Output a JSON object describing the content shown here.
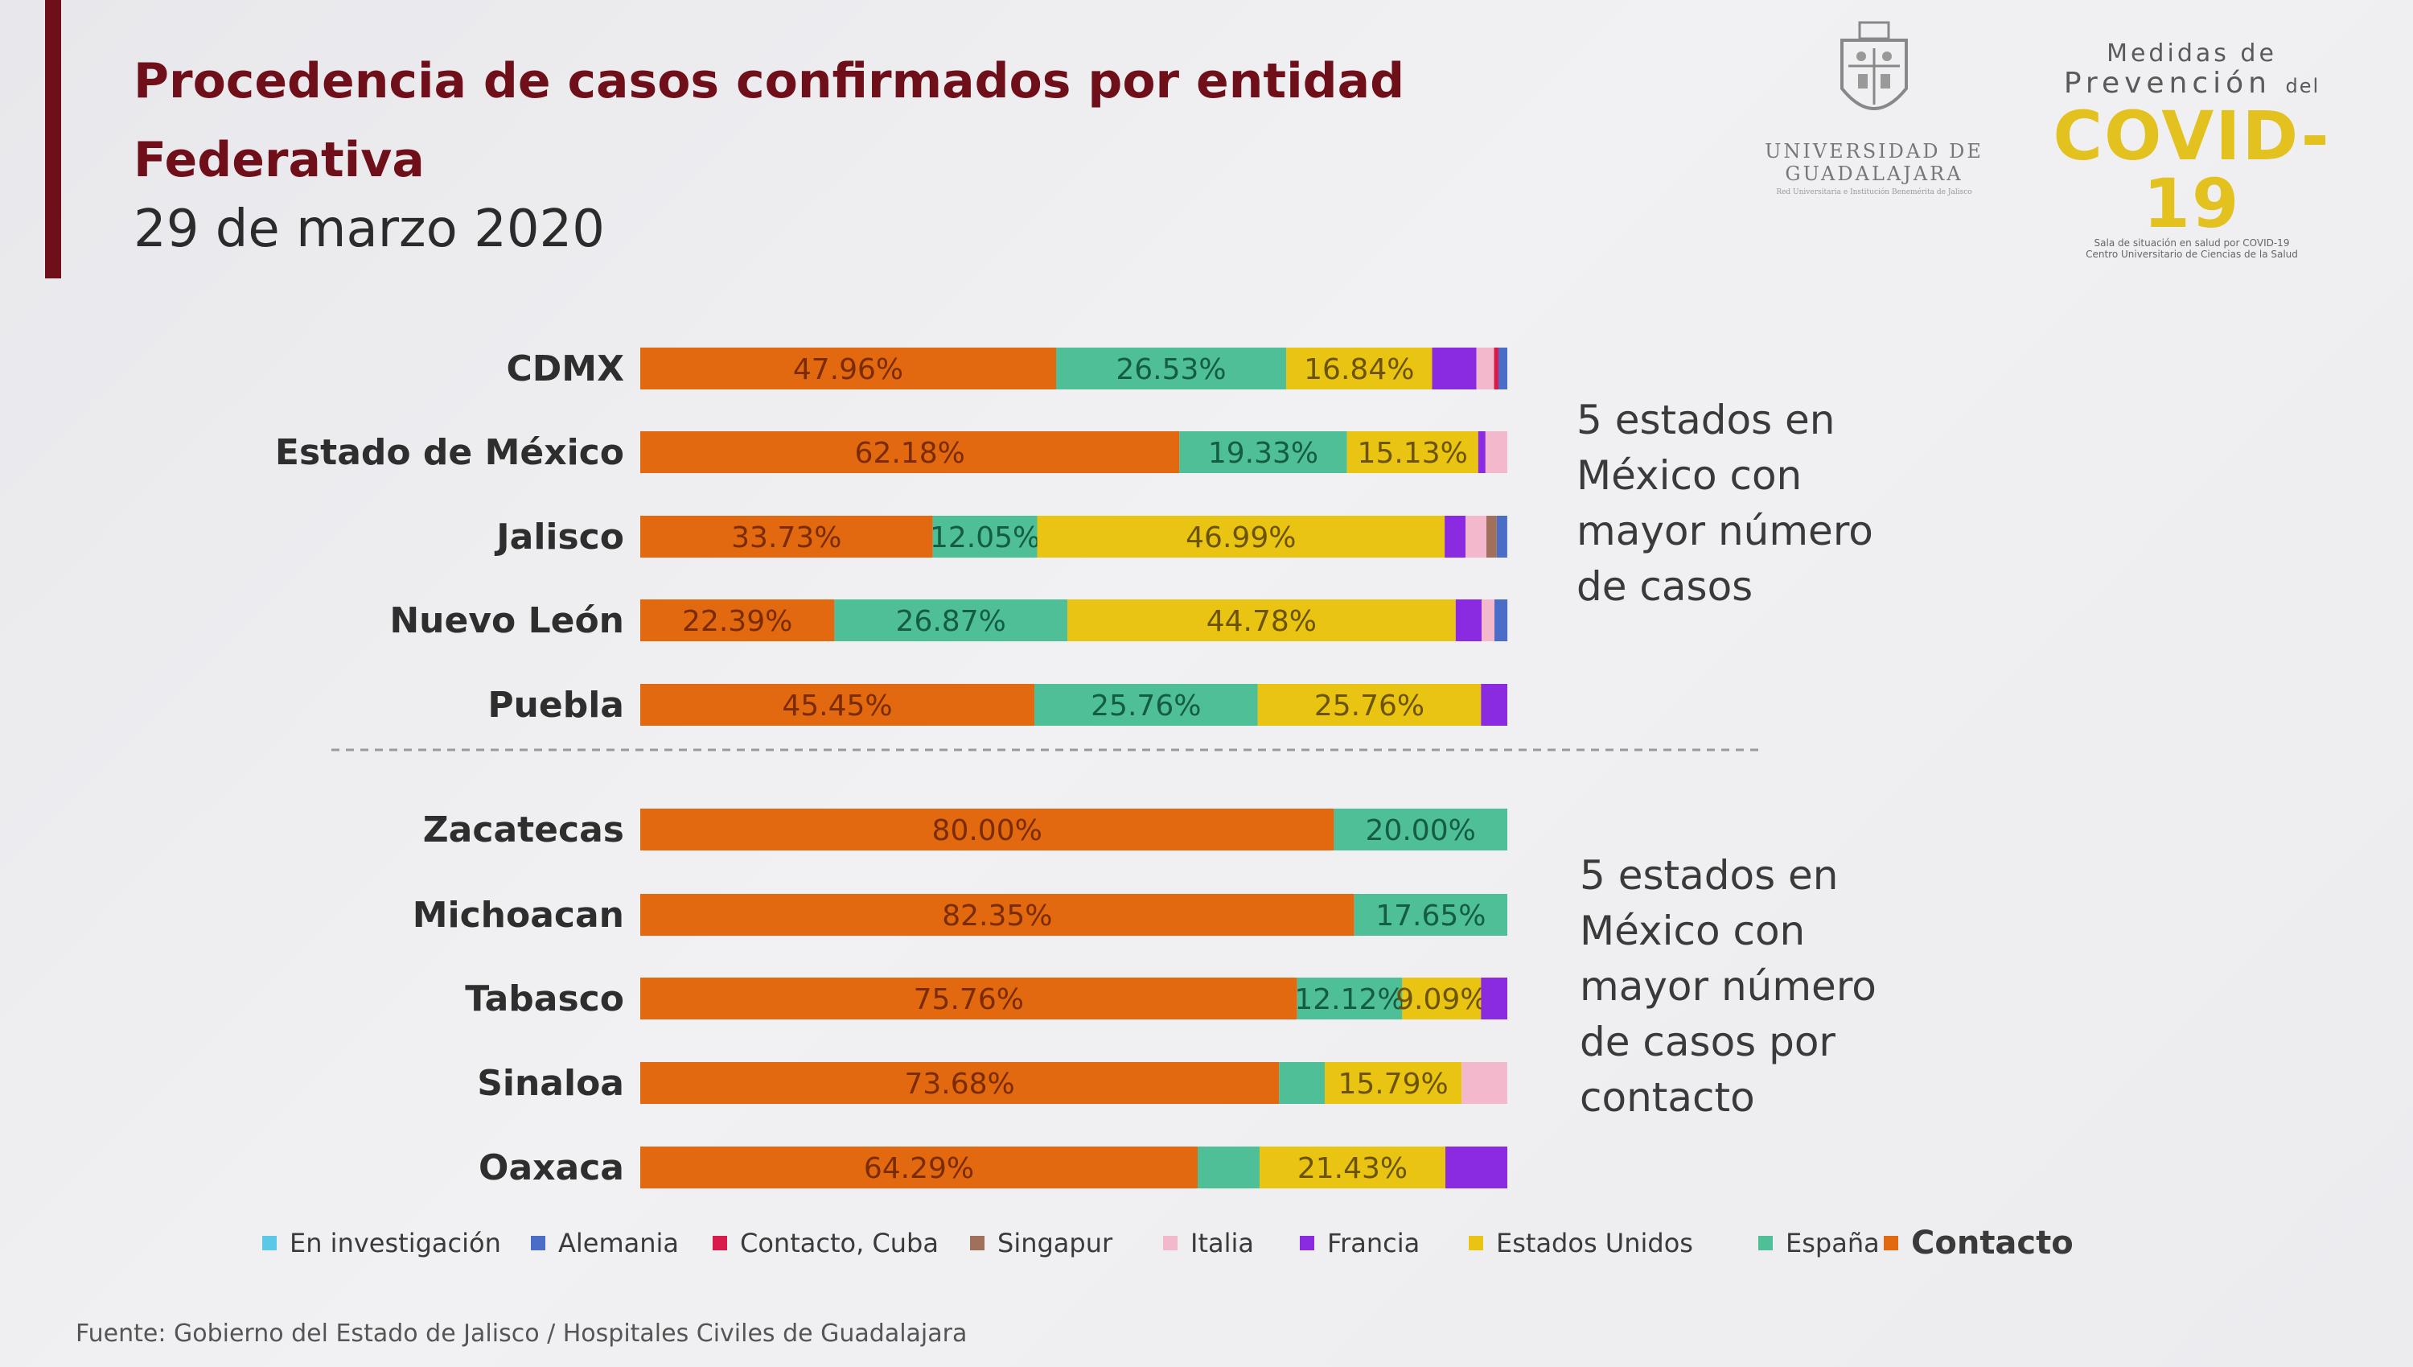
{
  "header": {
    "title_line1": "Procedencia de casos confirmados por entidad",
    "title_line2": "Federativa",
    "date": "29 de marzo 2020"
  },
  "logos": {
    "udg_line1": "UNIVERSIDAD DE",
    "udg_line2": "GUADALAJARA",
    "udg_small": "Red Universitaria e Institución Benemérita de Jalisco",
    "covid_line1": "Medidas de",
    "covid_line2": "Prevención",
    "covid_line2_small": "del",
    "covid_line3": "COVID-19",
    "covid_line4": "Sala de situación en salud por COVID-19",
    "covid_line5": "Centro Universitario de Ciencias de la Salud"
  },
  "captions": {
    "top": [
      "5 estados en",
      "México  con",
      "mayor número",
      "de casos"
    ],
    "bottom": [
      "5 estados en",
      "México  con",
      "mayor número",
      "de casos por",
      "contacto"
    ]
  },
  "source": "Fuente: Gobierno del Estado de Jalisco / Hospitales Civiles de Guadalajara",
  "colors": {
    "Contacto": "#e2690f",
    "España": "#4fbf98",
    "Estados Unidos": "#e9c412",
    "Francia": "#8a2be2",
    "Italia": "#f3b8cb",
    "Singapur": "#a0705a",
    "Contacto, Cuba": "#d81b4a",
    "Alemania": "#4a6ec8",
    "En investigación": "#5cc8e8"
  },
  "chart_data": {
    "type": "bar",
    "orientation": "horizontal",
    "stacked": true,
    "normalized": true,
    "categories": [
      "CDMX",
      "Estado de México",
      "Jalisco",
      "Nuevo León",
      "Puebla",
      "Zacatecas",
      "Michoacan",
      "Tabasco",
      "Sinaloa",
      "Oaxaca"
    ],
    "series": [
      {
        "name": "Contacto",
        "values": [
          47.96,
          62.18,
          33.73,
          22.39,
          45.45,
          80.0,
          82.35,
          75.76,
          73.68,
          64.29
        ],
        "labels": [
          "47.96%",
          "62.18%",
          "33.73%",
          "22.39%",
          "45.45%",
          "80.00%",
          "82.35%",
          "75.76%",
          "73.68%",
          "64.29%"
        ]
      },
      {
        "name": "España",
        "values": [
          26.53,
          19.33,
          12.05,
          26.87,
          25.76,
          20.0,
          17.65,
          12.12,
          5.26,
          7.14
        ],
        "labels": [
          "26.53%",
          "19.33%",
          "12.05%",
          "26.87%",
          "25.76%",
          "20.00%",
          "17.65%",
          "12.12%",
          "",
          ""
        ]
      },
      {
        "name": "Estados Unidos",
        "values": [
          16.84,
          15.13,
          46.99,
          44.78,
          25.76,
          0,
          0,
          9.09,
          15.79,
          21.43
        ],
        "labels": [
          "16.84%",
          "15.13%",
          "46.99%",
          "44.78%",
          "25.76%",
          "",
          "",
          "9.09%",
          "15.79%",
          "21.43%"
        ]
      },
      {
        "name": "Francia",
        "values": [
          5.1,
          0.84,
          2.41,
          2.99,
          3.03,
          0,
          0,
          3.03,
          0,
          7.14
        ],
        "labels": [
          "",
          "",
          "",
          "",
          "",
          "",
          "",
          "",
          "",
          ""
        ]
      },
      {
        "name": "Italia",
        "values": [
          2.04,
          2.52,
          2.41,
          1.49,
          0,
          0,
          0,
          0,
          5.26,
          0
        ],
        "labels": [
          "",
          "",
          "",
          "",
          "",
          "",
          "",
          "",
          "",
          ""
        ]
      },
      {
        "name": "Singapur",
        "values": [
          0,
          0,
          1.2,
          0,
          0,
          0,
          0,
          0,
          0,
          0
        ],
        "labels": [
          "",
          "",
          "",
          "",
          "",
          "",
          "",
          "",
          "",
          ""
        ]
      },
      {
        "name": "Contacto, Cuba",
        "values": [
          0.51,
          0,
          0,
          0,
          0,
          0,
          0,
          0,
          0,
          0
        ],
        "labels": [
          "",
          "",
          "",
          "",
          "",
          "",
          "",
          "",
          "",
          ""
        ]
      },
      {
        "name": "Alemania",
        "values": [
          1.02,
          0,
          1.2,
          1.49,
          0,
          0,
          0,
          0,
          0,
          0
        ],
        "labels": [
          "",
          "",
          "",
          "",
          "",
          "",
          "",
          "",
          "",
          ""
        ]
      },
      {
        "name": "En investigación",
        "values": [
          0,
          0,
          0,
          0,
          0,
          0,
          0,
          0,
          0,
          0
        ],
        "labels": [
          "",
          "",
          "",
          "",
          "",
          "",
          "",
          "",
          "",
          ""
        ]
      }
    ],
    "xlim": [
      0,
      100
    ],
    "legend": {
      "position": "bottom",
      "entries": [
        "En investigación",
        "Alemania",
        "Contacto, Cuba",
        "Singapur",
        "Italia",
        "Francia",
        "Estados Unidos",
        "España",
        "Contacto"
      ]
    },
    "grid": false
  }
}
